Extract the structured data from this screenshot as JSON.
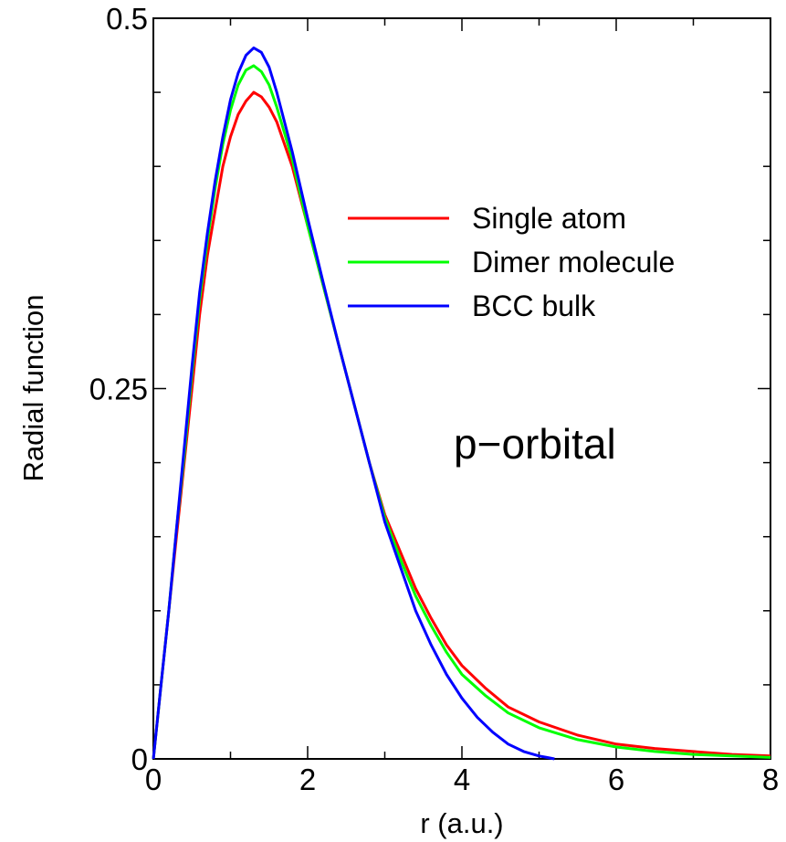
{
  "chart_data": {
    "type": "line",
    "xlabel": "r (a.u.)",
    "ylabel": "Radial function",
    "xlim": [
      0,
      8
    ],
    "ylim": [
      0,
      0.5
    ],
    "xticks": [
      0,
      2,
      4,
      6,
      8
    ],
    "xtick_labels": [
      "0",
      "2",
      "4",
      "6",
      "8"
    ],
    "yticks": [
      0,
      0.25,
      0.5
    ],
    "ytick_labels": [
      "0",
      "0.25",
      "0.5"
    ],
    "x_minor_step": 1,
    "y_minor_step": 0.05,
    "grid": false,
    "legend_position": "upper-right",
    "annotation": "p−orbital",
    "series": [
      {
        "name": "Single atom",
        "color": "#ff0000",
        "x": [
          0,
          0.1,
          0.2,
          0.3,
          0.4,
          0.5,
          0.6,
          0.7,
          0.8,
          0.9,
          1.0,
          1.1,
          1.2,
          1.3,
          1.4,
          1.5,
          1.6,
          1.8,
          2.0,
          2.2,
          2.4,
          2.6,
          2.8,
          3.0,
          3.2,
          3.4,
          3.6,
          3.8,
          4.0,
          4.3,
          4.6,
          5.0,
          5.5,
          6.0,
          6.5,
          7.0,
          7.5,
          8.0
        ],
        "y": [
          0,
          0.05,
          0.1,
          0.15,
          0.2,
          0.25,
          0.3,
          0.34,
          0.37,
          0.4,
          0.42,
          0.435,
          0.444,
          0.45,
          0.447,
          0.44,
          0.43,
          0.4,
          0.36,
          0.32,
          0.28,
          0.24,
          0.2,
          0.165,
          0.14,
          0.115,
          0.095,
          0.077,
          0.063,
          0.048,
          0.035,
          0.025,
          0.016,
          0.01,
          0.007,
          0.005,
          0.003,
          0.002
        ]
      },
      {
        "name": "Dimer molecule",
        "color": "#00ff00",
        "x": [
          0,
          0.1,
          0.2,
          0.3,
          0.4,
          0.5,
          0.6,
          0.7,
          0.8,
          0.9,
          1.0,
          1.1,
          1.2,
          1.3,
          1.4,
          1.5,
          1.6,
          1.8,
          2.0,
          2.2,
          2.4,
          2.6,
          2.8,
          3.0,
          3.2,
          3.4,
          3.6,
          3.8,
          4.0,
          4.3,
          4.6,
          5.0,
          5.5,
          6.0,
          6.5,
          7.0,
          7.5,
          8.0
        ],
        "y": [
          0,
          0.05,
          0.1,
          0.155,
          0.205,
          0.26,
          0.31,
          0.35,
          0.385,
          0.415,
          0.438,
          0.455,
          0.465,
          0.468,
          0.464,
          0.455,
          0.44,
          0.405,
          0.36,
          0.32,
          0.28,
          0.24,
          0.2,
          0.163,
          0.135,
          0.11,
          0.09,
          0.072,
          0.057,
          0.043,
          0.031,
          0.021,
          0.013,
          0.008,
          0.005,
          0.003,
          0.002,
          0.001
        ]
      },
      {
        "name": "BCC bulk",
        "color": "#0000ff",
        "x": [
          0,
          0.1,
          0.2,
          0.3,
          0.4,
          0.5,
          0.6,
          0.7,
          0.8,
          0.9,
          1.0,
          1.1,
          1.2,
          1.3,
          1.4,
          1.5,
          1.6,
          1.8,
          2.0,
          2.2,
          2.4,
          2.6,
          2.8,
          3.0,
          3.2,
          3.4,
          3.6,
          3.8,
          4.0,
          4.2,
          4.4,
          4.6,
          4.8,
          5.0,
          5.1,
          5.2
        ],
        "y": [
          0,
          0.05,
          0.1,
          0.155,
          0.21,
          0.265,
          0.315,
          0.355,
          0.39,
          0.42,
          0.445,
          0.463,
          0.475,
          0.48,
          0.477,
          0.467,
          0.45,
          0.41,
          0.365,
          0.322,
          0.28,
          0.24,
          0.2,
          0.16,
          0.13,
          0.1,
          0.077,
          0.057,
          0.041,
          0.028,
          0.018,
          0.01,
          0.005,
          0.002,
          0.001,
          0
        ]
      }
    ]
  }
}
